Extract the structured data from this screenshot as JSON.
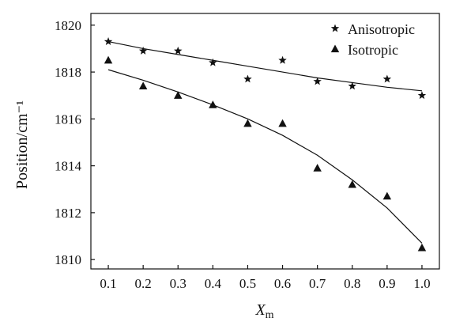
{
  "chart_data": {
    "type": "scatter",
    "x": [
      0.1,
      0.2,
      0.3,
      0.4,
      0.5,
      0.6,
      0.7,
      0.8,
      0.9,
      1.0
    ],
    "series": [
      {
        "name": "Anisotropic",
        "marker": "star",
        "values": [
          1819.3,
          1818.9,
          1818.9,
          1818.4,
          1817.7,
          1818.5,
          1817.6,
          1817.4,
          1817.7,
          1817.0
        ],
        "fit": [
          1819.3,
          1819.0,
          1818.75,
          1818.5,
          1818.25,
          1818.0,
          1817.75,
          1817.55,
          1817.35,
          1817.2
        ]
      },
      {
        "name": "Isotropic",
        "marker": "triangle",
        "values": [
          1818.5,
          1817.4,
          1817.0,
          1816.6,
          1815.8,
          1815.8,
          1813.9,
          1813.2,
          1812.7,
          1810.5
        ],
        "fit": [
          1818.1,
          1817.65,
          1817.15,
          1816.6,
          1816.0,
          1815.3,
          1814.45,
          1813.4,
          1812.2,
          1810.7
        ]
      }
    ],
    "x_ticks": [
      "0.1",
      "0.2",
      "0.3",
      "0.4",
      "0.5",
      "0.6",
      "0.7",
      "0.8",
      "0.9",
      "1.0"
    ],
    "y_ticks": [
      "1810",
      "1812",
      "1814",
      "1816",
      "1818",
      "1820"
    ],
    "xlim": [
      0.05,
      1.05
    ],
    "ylim": [
      1809.6,
      1820.5
    ],
    "xlabel": "X",
    "xlabel_sub": "m",
    "ylabel": "Position/cm⁻¹",
    "legend_position": "top-right",
    "grid": false
  }
}
